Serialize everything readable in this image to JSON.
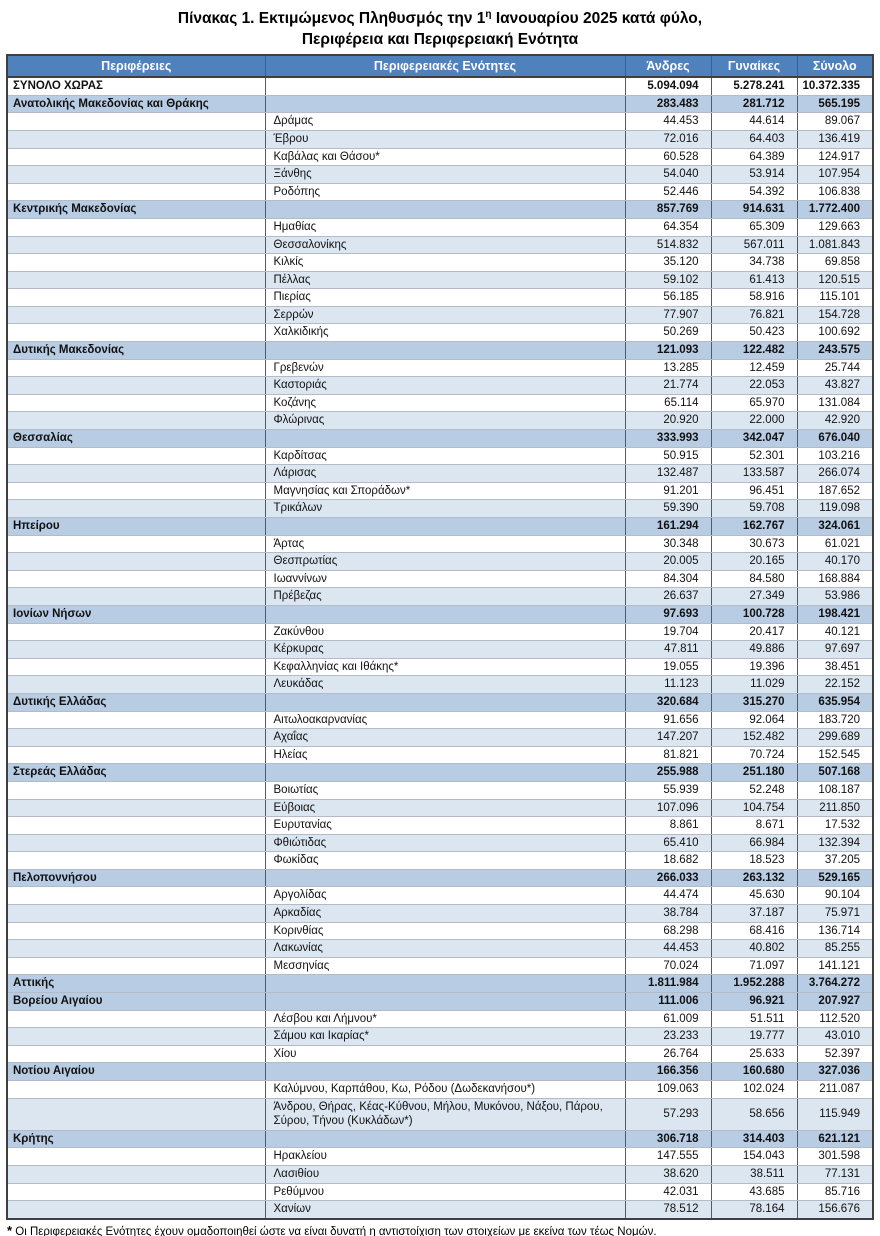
{
  "title": {
    "line1_prefix": "Πίνακας 1. Εκτιμώμενος Πληθυσμός την 1",
    "line1_sup": "η",
    "line1_suffix": " Ιανουαρίου 2025 κατά φύλο,",
    "line2": "Περιφέρεια και Περιφερειακή Ενότητα"
  },
  "table": {
    "headers": [
      "Περιφέρειες",
      "Περιφερειακές Ενότητες",
      "Άνδρες",
      "Γυναίκες",
      "Σύνολο"
    ],
    "rows": [
      {
        "type": "total",
        "name": "ΣΥΝΟΛΟ ΧΩΡΑΣ",
        "men": "5.094.094",
        "women": "5.278.241",
        "total": "10.372.335"
      },
      {
        "type": "region",
        "name": "Ανατολικής Μακεδονίας και Θράκης",
        "men": "283.483",
        "women": "281.712",
        "total": "565.195"
      },
      {
        "type": "unit",
        "name": "Δράμας",
        "men": "44.453",
        "women": "44.614",
        "total": "89.067"
      },
      {
        "type": "unit",
        "name": "Έβρου",
        "men": "72.016",
        "women": "64.403",
        "total": "136.419"
      },
      {
        "type": "unit",
        "name": "Καβάλας και Θάσου*",
        "men": "60.528",
        "women": "64.389",
        "total": "124.917"
      },
      {
        "type": "unit",
        "name": "Ξάνθης",
        "men": "54.040",
        "women": "53.914",
        "total": "107.954"
      },
      {
        "type": "unit",
        "name": "Ροδόπης",
        "men": "52.446",
        "women": "54.392",
        "total": "106.838"
      },
      {
        "type": "region",
        "name": "Κεντρικής Μακεδονίας",
        "men": "857.769",
        "women": "914.631",
        "total": "1.772.400"
      },
      {
        "type": "unit",
        "name": "Ημαθίας",
        "men": "64.354",
        "women": "65.309",
        "total": "129.663"
      },
      {
        "type": "unit",
        "name": "Θεσσαλονίκης",
        "men": "514.832",
        "women": "567.011",
        "total": "1.081.843"
      },
      {
        "type": "unit",
        "name": "Κιλκίς",
        "men": "35.120",
        "women": "34.738",
        "total": "69.858"
      },
      {
        "type": "unit",
        "name": "Πέλλας",
        "men": "59.102",
        "women": "61.413",
        "total": "120.515"
      },
      {
        "type": "unit",
        "name": "Πιερίας",
        "men": "56.185",
        "women": "58.916",
        "total": "115.101"
      },
      {
        "type": "unit",
        "name": "Σερρών",
        "men": "77.907",
        "women": "76.821",
        "total": "154.728"
      },
      {
        "type": "unit",
        "name": "Χαλκιδικής",
        "men": "50.269",
        "women": "50.423",
        "total": "100.692"
      },
      {
        "type": "region",
        "name": "Δυτικής Μακεδονίας",
        "men": "121.093",
        "women": "122.482",
        "total": "243.575"
      },
      {
        "type": "unit",
        "name": "Γρεβενών",
        "men": "13.285",
        "women": "12.459",
        "total": "25.744"
      },
      {
        "type": "unit",
        "name": "Καστοριάς",
        "men": "21.774",
        "women": "22.053",
        "total": "43.827"
      },
      {
        "type": "unit",
        "name": "Κοζάνης",
        "men": "65.114",
        "women": "65.970",
        "total": "131.084"
      },
      {
        "type": "unit",
        "name": "Φλώρινας",
        "men": "20.920",
        "women": "22.000",
        "total": "42.920"
      },
      {
        "type": "region",
        "name": "Θεσσαλίας",
        "men": "333.993",
        "women": "342.047",
        "total": "676.040"
      },
      {
        "type": "unit",
        "name": "Καρδίτσας",
        "men": "50.915",
        "women": "52.301",
        "total": "103.216"
      },
      {
        "type": "unit",
        "name": "Λάρισας",
        "men": "132.487",
        "women": "133.587",
        "total": "266.074"
      },
      {
        "type": "unit",
        "name": "Μαγνησίας και Σποράδων*",
        "men": "91.201",
        "women": "96.451",
        "total": "187.652"
      },
      {
        "type": "unit",
        "name": "Τρικάλων",
        "men": "59.390",
        "women": "59.708",
        "total": "119.098"
      },
      {
        "type": "region",
        "name": "Ηπείρου",
        "men": "161.294",
        "women": "162.767",
        "total": "324.061"
      },
      {
        "type": "unit",
        "name": "Άρτας",
        "men": "30.348",
        "women": "30.673",
        "total": "61.021"
      },
      {
        "type": "unit",
        "name": "Θεσπρωτίας",
        "men": "20.005",
        "women": "20.165",
        "total": "40.170"
      },
      {
        "type": "unit",
        "name": "Ιωαννίνων",
        "men": "84.304",
        "women": "84.580",
        "total": "168.884"
      },
      {
        "type": "unit",
        "name": "Πρέβεζας",
        "men": "26.637",
        "women": "27.349",
        "total": "53.986"
      },
      {
        "type": "region",
        "name": "Ιονίων Νήσων",
        "men": "97.693",
        "women": "100.728",
        "total": "198.421"
      },
      {
        "type": "unit",
        "name": "Ζακύνθου",
        "men": "19.704",
        "women": "20.417",
        "total": "40.121"
      },
      {
        "type": "unit",
        "name": "Κέρκυρας",
        "men": "47.811",
        "women": "49.886",
        "total": "97.697"
      },
      {
        "type": "unit",
        "name": "Κεφαλληνίας και Ιθάκης*",
        "men": "19.055",
        "women": "19.396",
        "total": "38.451"
      },
      {
        "type": "unit",
        "name": "Λευκάδας",
        "men": "11.123",
        "women": "11.029",
        "total": "22.152"
      },
      {
        "type": "region",
        "name": "Δυτικής Ελλάδας",
        "men": "320.684",
        "women": "315.270",
        "total": "635.954"
      },
      {
        "type": "unit",
        "name": "Αιτωλοακαρνανίας",
        "men": "91.656",
        "women": "92.064",
        "total": "183.720"
      },
      {
        "type": "unit",
        "name": "Αχαΐας",
        "men": "147.207",
        "women": "152.482",
        "total": "299.689"
      },
      {
        "type": "unit",
        "name": "Ηλείας",
        "men": "81.821",
        "women": "70.724",
        "total": "152.545"
      },
      {
        "type": "region",
        "name": "Στερεάς Ελλάδας",
        "men": "255.988",
        "women": "251.180",
        "total": "507.168"
      },
      {
        "type": "unit",
        "name": "Βοιωτίας",
        "men": "55.939",
        "women": "52.248",
        "total": "108.187"
      },
      {
        "type": "unit",
        "name": "Εύβοιας",
        "men": "107.096",
        "women": "104.754",
        "total": "211.850"
      },
      {
        "type": "unit",
        "name": "Ευρυτανίας",
        "men": "8.861",
        "women": "8.671",
        "total": "17.532"
      },
      {
        "type": "unit",
        "name": "Φθιώτιδας",
        "men": "65.410",
        "women": "66.984",
        "total": "132.394"
      },
      {
        "type": "unit",
        "name": "Φωκίδας",
        "men": "18.682",
        "women": "18.523",
        "total": "37.205"
      },
      {
        "type": "region",
        "name": "Πελοποννήσου",
        "men": "266.033",
        "women": "263.132",
        "total": "529.165"
      },
      {
        "type": "unit",
        "name": "Αργολίδας",
        "men": "44.474",
        "women": "45.630",
        "total": "90.104"
      },
      {
        "type": "unit",
        "name": "Αρκαδίας",
        "men": "38.784",
        "women": "37.187",
        "total": "75.971"
      },
      {
        "type": "unit",
        "name": "Κορινθίας",
        "men": "68.298",
        "women": "68.416",
        "total": "136.714"
      },
      {
        "type": "unit",
        "name": "Λακωνίας",
        "men": "44.453",
        "women": "40.802",
        "total": "85.255"
      },
      {
        "type": "unit",
        "name": "Μεσσηνίας",
        "men": "70.024",
        "women": "71.097",
        "total": "141.121"
      },
      {
        "type": "region",
        "name": "Αττικής",
        "men": "1.811.984",
        "women": "1.952.288",
        "total": "3.764.272"
      },
      {
        "type": "region",
        "name": "Βορείου Αιγαίου",
        "men": "111.006",
        "women": "96.921",
        "total": "207.927"
      },
      {
        "type": "unit",
        "name": "Λέσβου και Λήμνου*",
        "men": "61.009",
        "women": "51.511",
        "total": "112.520"
      },
      {
        "type": "unit",
        "name": "Σάμου και Ικαρίας*",
        "men": "23.233",
        "women": "19.777",
        "total": "43.010"
      },
      {
        "type": "unit",
        "name": "Χίου",
        "men": "26.764",
        "women": "25.633",
        "total": "52.397"
      },
      {
        "type": "region",
        "name": "Νοτίου Αιγαίου",
        "men": "166.356",
        "women": "160.680",
        "total": "327.036"
      },
      {
        "type": "unit",
        "name": "Καλύμνου, Καρπάθου, Κω, Ρόδου (Δωδεκανήσου*)",
        "men": "109.063",
        "women": "102.024",
        "total": "211.087"
      },
      {
        "type": "unit",
        "name": "Άνδρου, Θήρας, Κέας-Κύθνου, Μήλου, Μυκόνου, Νάξου, Πάρου, Σύρου, Τήνου (Κυκλάδων*)",
        "men": "57.293",
        "women": "58.656",
        "total": "115.949"
      },
      {
        "type": "region",
        "name": "Κρήτης",
        "men": "306.718",
        "women": "314.403",
        "total": "621.121"
      },
      {
        "type": "unit",
        "name": "Ηρακλείου",
        "men": "147.555",
        "women": "154.043",
        "total": "301.598"
      },
      {
        "type": "unit",
        "name": "Λασιθίου",
        "men": "38.620",
        "women": "38.511",
        "total": "77.131"
      },
      {
        "type": "unit",
        "name": "Ρεθύμνου",
        "men": "42.031",
        "women": "43.685",
        "total": "85.716"
      },
      {
        "type": "unit",
        "name": "Χανίων",
        "men": "78.512",
        "women": "78.164",
        "total": "156.676"
      }
    ]
  },
  "footnote": {
    "marker": "*",
    "text": "Οι Περιφερειακές Ενότητες έχουν ομαδοποιηθεί ώστε να είναι δυνατή η αντιστοίχιση των στοιχείων με εκείνα των τέως Νομών."
  },
  "colors": {
    "header_bg": "#4f81bd",
    "header_text": "#ffffff",
    "region_row_bg": "#b8cce4",
    "alt_row_bg": "#dce6f1",
    "white_row_bg": "#ffffff",
    "outer_border": "#3f3f3f",
    "col_border": "#5a5a5a",
    "row_border": "#b3bcc6",
    "text_color": "#111111"
  }
}
